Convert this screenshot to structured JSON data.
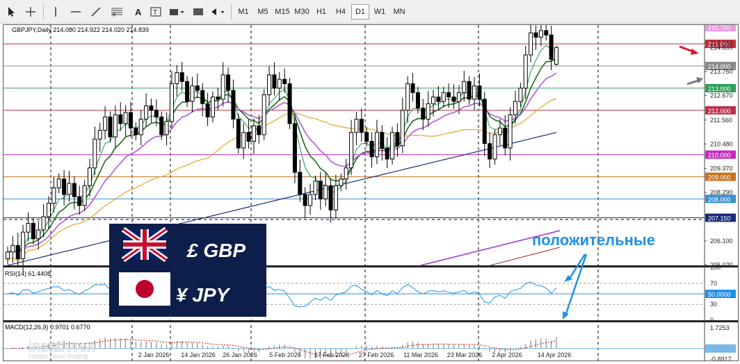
{
  "toolbar": {
    "timeframes": [
      "M1",
      "M5",
      "M15",
      "M30",
      "H1",
      "H4",
      "D1",
      "W1",
      "MN"
    ],
    "active_timeframe": "D1"
  },
  "chart_header": {
    "symbol": "GBPJPY",
    "period": "Daily",
    "ohlc": "214.080 214.922 214.020 214.839"
  },
  "price_axis_labels": [
    "215.040",
    "214.839",
    "213.750",
    "212.670",
    "211.560",
    "210.480",
    "209.370",
    "208.290",
    "206.100",
    "205.020"
  ],
  "price_level_tags": [
    {
      "price": 215.75,
      "label": "215.750",
      "color": "#e79be0"
    },
    {
      "price": 215.0,
      "label": "215.000",
      "color": "#cc2a3a"
    },
    {
      "price": 214.0,
      "label": "214.000",
      "color": "#8a8a8a"
    },
    {
      "price": 213.0,
      "label": "213.000",
      "color": "#2f9c5c"
    },
    {
      "price": 212.0,
      "label": "212.000",
      "color": "#b8324a"
    },
    {
      "price": 210.0,
      "label": "210.000",
      "color": "#c42bbf"
    },
    {
      "price": 209.0,
      "label": "209.000",
      "color": "#c7731f"
    },
    {
      "price": 208.0,
      "label": "208.000",
      "color": "#3a8fcf"
    },
    {
      "price": 207.15,
      "label": "207.150",
      "color": "#1a2a7a"
    }
  ],
  "date_axis_labels": [
    "2 Jan 2026",
    "14 Jan 2026",
    "26 Jan 2026",
    "5 Feb 2026",
    "17 Feb 2026",
    "27 Feb 2026",
    "11 Mar 2026",
    "23 Mar 2026",
    "2 Apr 2026",
    "14 Apr 2026"
  ],
  "rsi": {
    "label": "RSI(14) 61.4408",
    "axis_labels": [
      "100",
      "70",
      "50",
      "30",
      "0"
    ],
    "level_tag": "50.0000"
  },
  "macd": {
    "label": "MACD(12,26,9) 0.9701 0.6770",
    "axis_labels": [
      "1.7253",
      "0.0000",
      "-0.8917"
    ]
  },
  "annotation": {
    "text": "положительные",
    "color": "#1e90e8"
  },
  "banner": {
    "line1": "£ GBP",
    "line2": "¥ JPY"
  },
  "watermark": {
    "brand": "instaforex",
    "tagline": "Instant Forex Trading"
  },
  "colors": {
    "ma_light_green": "#3aa86a",
    "ma_dark_green": "#1a6a1a",
    "ma_violet": "#b05ad0",
    "ma_orange": "#e3a42a",
    "ma_navy": "#1a2a80",
    "arrow_red": "#e0182a",
    "arrow_blue": "#1e90e8"
  },
  "chart_data": {
    "type": "candlestick",
    "symbol": "GBPJPY",
    "timeframe": "Daily",
    "last_ohlc": {
      "open": 214.08,
      "high": 214.922,
      "low": 214.02,
      "close": 214.839
    },
    "ylim": [
      205.0,
      215.6
    ],
    "closes": [
      205.6,
      205.9,
      205.3,
      206.5,
      206.9,
      206.2,
      206.6,
      207.2,
      207.8,
      208.5,
      208.9,
      208.2,
      208.7,
      208.1,
      207.7,
      208.6,
      209.4,
      210.7,
      211.1,
      211.7,
      210.8,
      211.8,
      211.4,
      211.9,
      211.2,
      210.9,
      211.6,
      212.2,
      212.0,
      211.7,
      210.9,
      211.5,
      213.2,
      213.7,
      213.3,
      212.4,
      213.1,
      212.9,
      212.3,
      211.7,
      212.6,
      212.5,
      213.6,
      212.9,
      211.6,
      210.3,
      211.0,
      210.6,
      211.3,
      210.9,
      212.7,
      213.6,
      213.0,
      213.4,
      213.2,
      211.4,
      209.2,
      208.2,
      207.7,
      208.2,
      208.8,
      208.0,
      208.6,
      207.5,
      208.6,
      208.9,
      209.4,
      211.0,
      211.6,
      211.0,
      210.6,
      209.9,
      211.0,
      210.3,
      209.8,
      211.0,
      210.4,
      212.0,
      213.2,
      212.8,
      212.1,
      211.6,
      212.3,
      212.6,
      212.4,
      212.8,
      212.6,
      212.4,
      212.8,
      213.3,
      212.5,
      213.1,
      212.5,
      210.5,
      209.8,
      210.9,
      211.2,
      210.3,
      211.8,
      212.4,
      213.0,
      214.5,
      215.5,
      215.3,
      215.6,
      215.4,
      214.3,
      214.839
    ],
    "moving_averages": [
      {
        "name": "MA light green",
        "color": "#3aa86a",
        "start": [
          205.2
        ],
        "end": [
          214.5
        ]
      },
      {
        "name": "MA dark green",
        "color": "#1a6a1a",
        "end": [
          213.8
        ]
      },
      {
        "name": "MA violet",
        "color": "#b05ad0",
        "end": [
          212.8
        ]
      },
      {
        "name": "MA orange",
        "color": "#e3a42a",
        "end": [
          211.6
        ]
      },
      {
        "name": "MA navy",
        "color": "#1a2a80",
        "end": [
          211.0
        ]
      }
    ],
    "rsi": {
      "period": 14,
      "value": 61.4408,
      "levels": [
        70,
        50,
        30
      ]
    },
    "macd": {
      "params": [
        12,
        26,
        9
      ],
      "macd": 0.9701,
      "signal": 0.677
    }
  }
}
